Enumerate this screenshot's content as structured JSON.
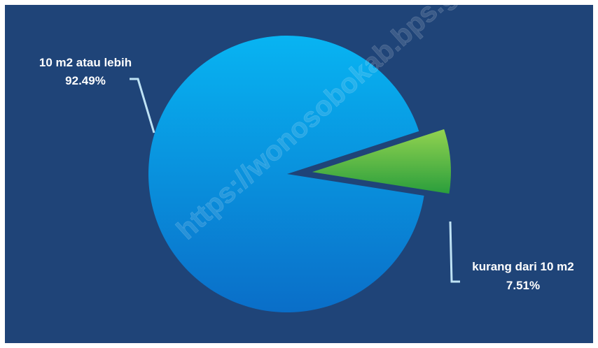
{
  "chart_data": {
    "type": "pie",
    "title": "",
    "slices": [
      {
        "label": "10 m2 atau lebih",
        "value": 92.49,
        "value_label": "92.49%"
      },
      {
        "label": "kurang dari 10 m2",
        "value": 7.51,
        "value_label": "7.51%"
      }
    ],
    "exploded": [
      false,
      true
    ],
    "legend": "none"
  },
  "watermark": "https://wonosobokab.bps.go.id",
  "colors": {
    "background": "#1f4478",
    "slice_large": "#0aa0e8",
    "slice_small": "#6ec43c",
    "leader": "#bfe3f5"
  }
}
